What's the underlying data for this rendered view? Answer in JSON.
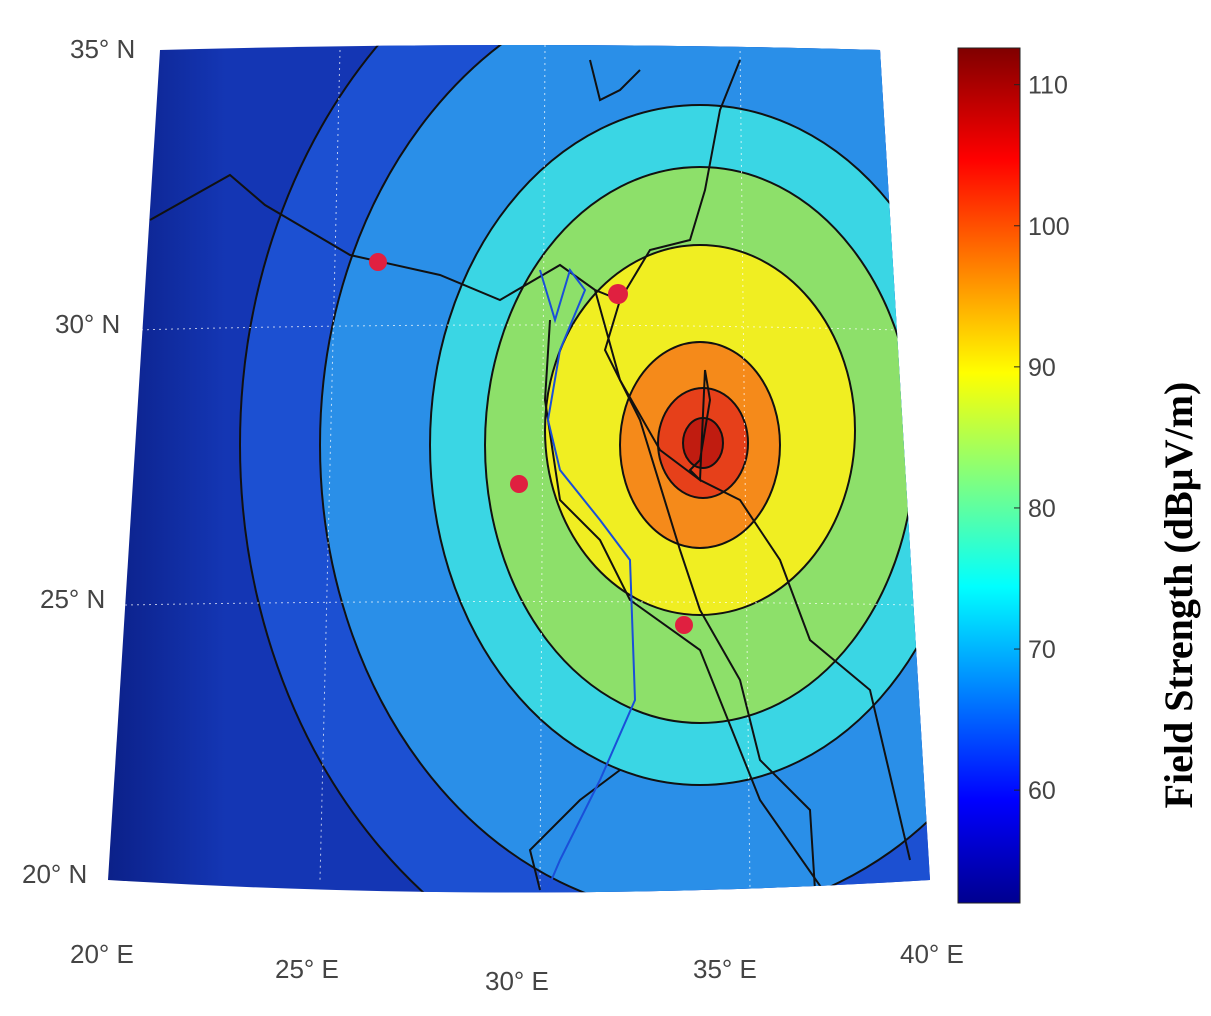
{
  "map": {
    "lat_labels": [
      "35° N",
      "30° N",
      "25° N",
      "20° N"
    ],
    "lon_labels": [
      "20° E",
      "25° E",
      "30° E",
      "35° E",
      "40° E"
    ]
  },
  "colorbar": {
    "label": "Field Strength (dBµV/m)",
    "lim": [
      52,
      112.6
    ],
    "ticks": [
      60,
      70,
      80,
      90,
      100,
      110
    ]
  }
}
